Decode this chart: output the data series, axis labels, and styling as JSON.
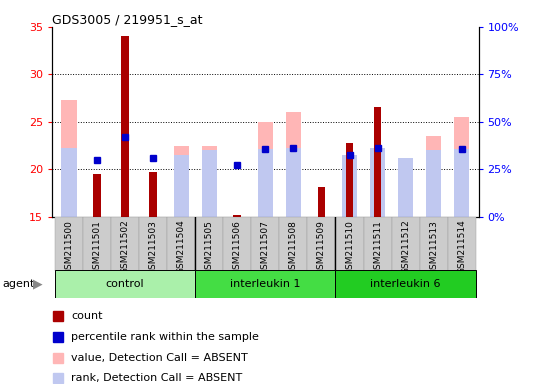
{
  "title": "GDS3005 / 219951_s_at",
  "samples": [
    "GSM211500",
    "GSM211501",
    "GSM211502",
    "GSM211503",
    "GSM211504",
    "GSM211505",
    "GSM211506",
    "GSM211507",
    "GSM211508",
    "GSM211509",
    "GSM211510",
    "GSM211511",
    "GSM211512",
    "GSM211513",
    "GSM211514"
  ],
  "count_values": [
    null,
    19.5,
    34.0,
    19.7,
    null,
    null,
    15.2,
    null,
    null,
    18.2,
    22.8,
    26.6,
    null,
    null,
    null
  ],
  "percentile_values": [
    null,
    21.0,
    23.4,
    21.2,
    null,
    null,
    20.5,
    22.2,
    22.3,
    null,
    21.5,
    22.3,
    null,
    null,
    22.2
  ],
  "value_absent": [
    27.3,
    null,
    null,
    null,
    22.5,
    22.5,
    null,
    25.0,
    26.0,
    null,
    null,
    null,
    20.3,
    23.5,
    25.5
  ],
  "rank_absent": [
    22.3,
    null,
    null,
    null,
    21.5,
    22.0,
    null,
    22.2,
    22.3,
    null,
    21.5,
    22.3,
    21.2,
    22.0,
    22.2
  ],
  "groups": [
    {
      "label": "control",
      "start": 0,
      "end": 4,
      "color": "#aaf0aa"
    },
    {
      "label": "interleukin 1",
      "start": 5,
      "end": 9,
      "color": "#44dd44"
    },
    {
      "label": "interleukin 6",
      "start": 10,
      "end": 14,
      "color": "#22cc22"
    }
  ],
  "ylim": [
    15,
    35
  ],
  "y2lim": [
    0,
    100
  ],
  "yticks": [
    15,
    20,
    25,
    30,
    35
  ],
  "y2ticks": [
    0,
    25,
    50,
    75,
    100
  ],
  "color_count": "#aa0000",
  "color_percentile": "#0000cc",
  "color_value_absent": "#ffb6b6",
  "color_rank_absent": "#c0c8f0",
  "bar_width": 0.55,
  "count_bar_width": 0.28
}
